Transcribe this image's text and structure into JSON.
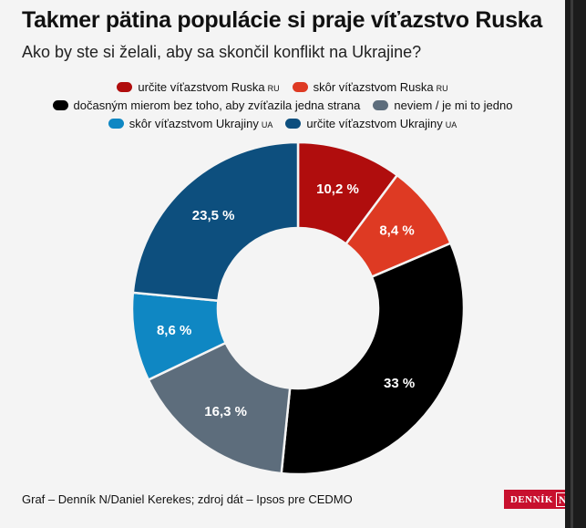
{
  "title": "Takmer pätina populácie si praje víťazstvo Ruska",
  "subtitle": "Ako by ste si želali, aby sa skončil konflikt na Ukrajine?",
  "chart_data": {
    "type": "pie",
    "donut": true,
    "legend_position": "top",
    "slices": [
      {
        "label": "určite víťazstvom Ruska",
        "tag": "RU",
        "value": 10.2,
        "display": "10,2 %",
        "color": "#b00d0d",
        "text_color": "#ffffff"
      },
      {
        "label": "skôr víťazstvom Ruska",
        "tag": "RU",
        "value": 8.4,
        "display": "8,4 %",
        "color": "#de3a23",
        "text_color": "#ffffff"
      },
      {
        "label": "dočasným mierom bez toho, aby zvíťazila jedna strana",
        "tag": "",
        "value": 33,
        "display": "33 %",
        "color": "#000000",
        "text_color": "#ffffff"
      },
      {
        "label": "neviem / je mi to jedno",
        "tag": "",
        "value": 16.3,
        "display": "16,3 %",
        "color": "#5d6d7c",
        "text_color": "#ffffff"
      },
      {
        "label": "skôr víťazstvom Ukrajiny",
        "tag": "UA",
        "value": 8.6,
        "display": "8,6 %",
        "color": "#0f87c3",
        "text_color": "#ffffff"
      },
      {
        "label": "určite víťazstvom Ukrajiny",
        "tag": "UA",
        "value": 23.5,
        "display": "23,5 %",
        "color": "#0d4f7e",
        "text_color": "#ffffff"
      }
    ]
  },
  "footer": "Graf – Denník N/Daniel Kerekes; zdroj dát – Ipsos pre CEDMO",
  "logo": {
    "text": "DENNÍK",
    "letter": "N"
  }
}
